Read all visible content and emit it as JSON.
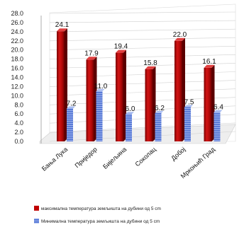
{
  "chart_data": {
    "type": "bar",
    "title": "",
    "xlabel": "",
    "ylabel": "",
    "ylim": [
      0,
      28
    ],
    "yticks": [
      "0.0",
      "2.0",
      "4.0",
      "6.0",
      "8.0",
      "10.0",
      "12.0",
      "14.0",
      "16.0",
      "18.0",
      "20.0",
      "22.0",
      "24.0",
      "26.0",
      "28.0"
    ],
    "grid": true,
    "legend_position": "bottom",
    "categories": [
      "Бања Лука",
      "Приједор",
      "Бијељина",
      "Соколац",
      "Добој",
      "Мркоњић Град"
    ],
    "series": [
      {
        "name": "максимална температура земљишта на дубини од 5 cm",
        "color": "#c00000",
        "values": [
          24.1,
          17.9,
          19.4,
          15.8,
          22.0,
          16.1
        ],
        "labels": [
          "24.1",
          "17.9",
          "19.4",
          "15.8",
          "22.0",
          "16.1"
        ]
      },
      {
        "name": "Минимална температура земљишта на дубини од 5 cm",
        "color": "#4f6fc8",
        "values": [
          7.2,
          11.0,
          6.0,
          6.2,
          7.5,
          6.4
        ],
        "labels": [
          "7.2",
          "11.0",
          "6.0",
          "6.2",
          "7.5",
          "6.4"
        ]
      }
    ]
  }
}
